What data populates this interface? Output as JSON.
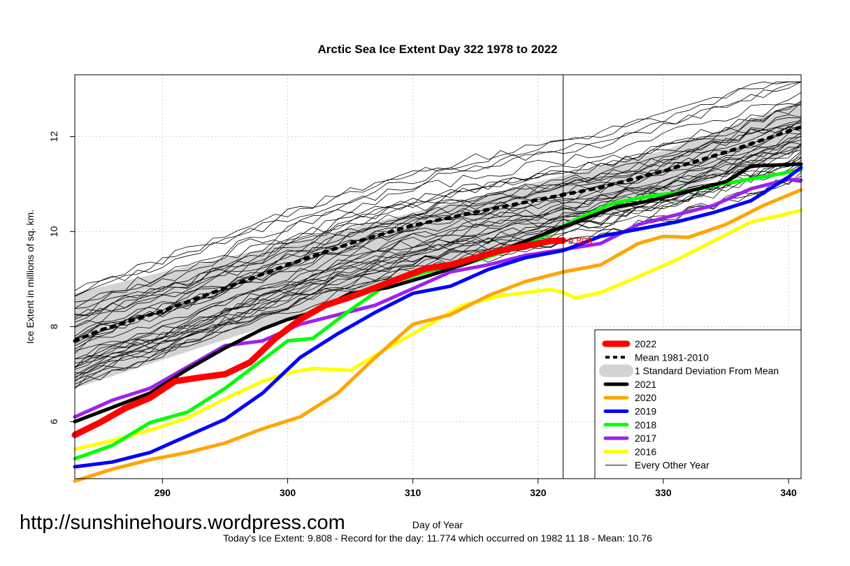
{
  "watermark": "http://sunshinehours.wordpress.com",
  "footer": "Today's Ice Extent: 9.808  - Record for the day: 11.774 which occurred on 1982 11 18  - Mean: 10.76",
  "chart_data": {
    "type": "line",
    "title": "Arctic Sea Ice Extent Day 322 1978 to 2022",
    "xlabel": "Day of Year",
    "ylabel": "Ice Extent in millions of sq. km.",
    "xlim": [
      283,
      341
    ],
    "ylim": [
      4.8,
      13.3
    ],
    "x_ticks": [
      290,
      300,
      310,
      320,
      330,
      340
    ],
    "y_ticks": [
      6,
      8,
      10,
      12
    ],
    "grid": true,
    "legend_position": "bottom-right",
    "current_day": 322,
    "current_value_label": "9.808",
    "current_value": 9.808,
    "std_band": {
      "name": "1 Standard Deviation From Mean",
      "color": "#d3d3d3",
      "days": [
        283,
        290,
        300,
        310,
        320,
        330,
        341
      ],
      "lower": [
        6.7,
        7.3,
        8.15,
        8.95,
        9.85,
        10.75,
        11.7
      ],
      "upper": [
        8.7,
        9.15,
        9.75,
        10.4,
        11.05,
        11.7,
        12.75
      ]
    },
    "mean": {
      "name": "Mean 1981-2010",
      "color": "#000000",
      "days": [
        283,
        285,
        290,
        295,
        300,
        305,
        310,
        315,
        320,
        325,
        330,
        335,
        341
      ],
      "values": [
        7.7,
        7.92,
        8.33,
        8.81,
        9.3,
        9.75,
        10.13,
        10.41,
        10.67,
        10.93,
        11.27,
        11.67,
        12.2
      ]
    },
    "series": [
      {
        "name": "2022",
        "color": "#ff0000",
        "width": 9,
        "days": [
          283,
          285,
          287,
          289,
          291,
          293,
          295,
          297,
          299,
          301,
          303,
          305,
          307,
          309,
          311,
          313,
          315,
          317,
          319,
          321,
          322
        ],
        "values": [
          5.72,
          5.98,
          6.28,
          6.5,
          6.85,
          6.93,
          7.0,
          7.25,
          7.75,
          8.15,
          8.45,
          8.62,
          8.82,
          9.02,
          9.22,
          9.3,
          9.45,
          9.6,
          9.7,
          9.8,
          9.81
        ]
      },
      {
        "name": "2021",
        "color": "#000000",
        "width": 5,
        "days": [
          283,
          286,
          289,
          292,
          295,
          298,
          300,
          302,
          305,
          308,
          311,
          314,
          317,
          320,
          323,
          326,
          329,
          332,
          335,
          337,
          341
        ],
        "values": [
          6.0,
          6.3,
          6.6,
          7.1,
          7.55,
          7.95,
          8.15,
          8.3,
          8.7,
          8.82,
          9.05,
          9.3,
          9.6,
          9.9,
          10.2,
          10.5,
          10.65,
          10.85,
          11.05,
          11.38,
          11.42
        ]
      },
      {
        "name": "2020",
        "color": "#ffa500",
        "width": 5,
        "days": [
          283,
          286,
          289,
          292,
          295,
          298,
          301,
          304,
          307,
          310,
          313,
          316,
          319,
          322,
          325,
          328,
          330,
          332,
          335,
          338,
          341
        ],
        "values": [
          4.75,
          5.0,
          5.2,
          5.35,
          5.55,
          5.85,
          6.1,
          6.6,
          7.35,
          8.05,
          8.25,
          8.65,
          8.95,
          9.15,
          9.3,
          9.75,
          9.9,
          9.88,
          10.15,
          10.55,
          10.88
        ]
      },
      {
        "name": "2019",
        "color": "#0000ff",
        "width": 5,
        "days": [
          283,
          286,
          289,
          292,
          295,
          298,
          301,
          304,
          307,
          310,
          313,
          316,
          319,
          322,
          325,
          328,
          331,
          334,
          337,
          340,
          341
        ],
        "values": [
          5.05,
          5.15,
          5.35,
          5.7,
          6.05,
          6.6,
          7.35,
          7.85,
          8.3,
          8.7,
          8.85,
          9.2,
          9.45,
          9.6,
          9.9,
          10.05,
          10.2,
          10.4,
          10.65,
          11.15,
          11.35
        ]
      },
      {
        "name": "2018",
        "color": "#00ff00",
        "width": 5,
        "days": [
          283,
          286,
          289,
          292,
          295,
          298,
          300,
          302,
          305,
          308,
          311,
          314,
          317,
          320,
          323,
          326,
          329,
          332,
          335,
          338,
          341
        ],
        "values": [
          5.22,
          5.5,
          5.98,
          6.2,
          6.7,
          7.3,
          7.7,
          7.75,
          8.35,
          8.9,
          9.15,
          9.3,
          9.55,
          9.85,
          10.25,
          10.6,
          10.75,
          10.85,
          11.02,
          11.15,
          11.3
        ]
      },
      {
        "name": "2017",
        "color": "#a020f0",
        "width": 5,
        "days": [
          283,
          286,
          289,
          292,
          295,
          298,
          301,
          304,
          307,
          310,
          313,
          316,
          319,
          322,
          325,
          328,
          331,
          334,
          337,
          340,
          341
        ],
        "values": [
          6.1,
          6.45,
          6.7,
          7.15,
          7.6,
          7.7,
          8.05,
          8.25,
          8.45,
          8.8,
          9.15,
          9.3,
          9.5,
          9.62,
          9.75,
          10.15,
          10.35,
          10.55,
          10.9,
          11.1,
          11.08
        ]
      },
      {
        "name": "2016",
        "color": "#ffff00",
        "width": 5,
        "days": [
          283,
          286,
          289,
          292,
          295,
          298,
          300,
          302,
          305,
          308,
          311,
          314,
          317,
          320,
          321,
          322,
          323,
          325,
          328,
          331,
          334,
          337,
          340,
          341
        ],
        "values": [
          5.42,
          5.6,
          5.82,
          6.08,
          6.48,
          6.85,
          7.02,
          7.12,
          7.08,
          7.55,
          8.0,
          8.45,
          8.65,
          8.75,
          8.78,
          8.72,
          8.6,
          8.72,
          9.05,
          9.4,
          9.8,
          10.2,
          10.38,
          10.45
        ]
      }
    ],
    "thin_lines": {
      "name": "Every Other Year",
      "color": "#000000",
      "count": 40
    }
  }
}
